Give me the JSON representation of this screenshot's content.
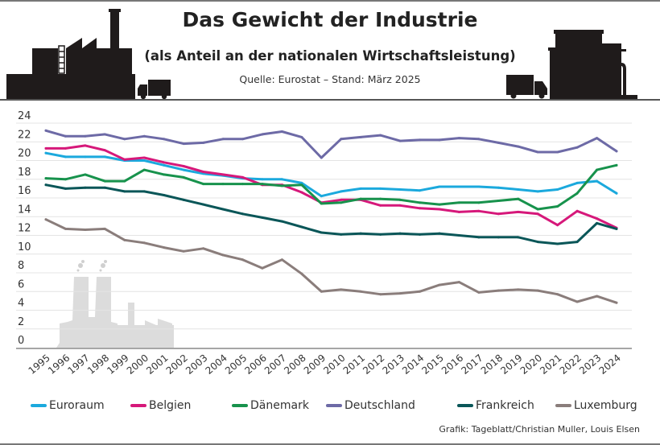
{
  "header": {
    "title": "Das Gewicht der Industrie",
    "subtitle": "(als Anteil an der nationalen Wirtschaftsleistung)",
    "source": "Quelle: Eurostat – Stand: März 2025"
  },
  "footer": {
    "credit": "Grafik: Tageblatt/Christian Muller, Louis Elsen"
  },
  "icons": [
    "factory-silhouette-icon",
    "truck-icon",
    "industrial-plant-icon",
    "power-plant-background-icon"
  ],
  "chart_data": {
    "type": "line",
    "title": "Das Gewicht der Industrie",
    "subtitle": "(als Anteil an der nationalen Wirtschaftsleistung)",
    "xlabel": "",
    "ylabel": "",
    "ylim": [
      0,
      24
    ],
    "yticks": [
      0,
      2,
      4,
      6,
      8,
      10,
      12,
      14,
      16,
      18,
      20,
      22,
      24
    ],
    "grid": true,
    "legend_position": "bottom",
    "x": [
      "1995",
      "1996",
      "1997",
      "1998",
      "1999",
      "2000",
      "2001",
      "2002",
      "2003",
      "2004",
      "2005",
      "2006",
      "2007",
      "2008",
      "2009",
      "2010",
      "2011",
      "2012",
      "2013",
      "2014",
      "2015",
      "2016",
      "2017",
      "2018",
      "2019",
      "2020",
      "2021",
      "2022",
      "2023",
      "2024"
    ],
    "series": [
      {
        "name": "Euroraum",
        "color": "#1ba9dd",
        "values": [
          20.8,
          20.4,
          20.4,
          20.4,
          20.0,
          20.0,
          19.5,
          19.0,
          18.6,
          18.4,
          18.1,
          18.0,
          18.0,
          17.6,
          16.2,
          16.7,
          17.0,
          17.0,
          16.9,
          16.8,
          17.2,
          17.2,
          17.2,
          17.1,
          16.9,
          16.7,
          16.9,
          17.6,
          17.8,
          16.5
        ]
      },
      {
        "name": "Belgien",
        "color": "#d6187a",
        "values": [
          21.3,
          21.3,
          21.6,
          21.1,
          20.1,
          20.3,
          19.8,
          19.4,
          18.8,
          18.5,
          18.2,
          17.4,
          17.4,
          16.6,
          15.5,
          15.8,
          15.8,
          15.2,
          15.2,
          14.9,
          14.8,
          14.5,
          14.6,
          14.3,
          14.5,
          14.3,
          13.1,
          14.6,
          13.8,
          12.8
        ]
      },
      {
        "name": "Dänemark",
        "color": "#17924c",
        "values": [
          18.1,
          18.0,
          18.5,
          17.8,
          17.8,
          19.0,
          18.5,
          18.2,
          17.5,
          17.5,
          17.5,
          17.5,
          17.3,
          17.4,
          15.4,
          15.5,
          15.9,
          15.9,
          15.8,
          15.5,
          15.3,
          15.5,
          15.5,
          15.7,
          15.9,
          14.8,
          15.1,
          16.5,
          19.0,
          19.5
        ]
      },
      {
        "name": "Deutschland",
        "color": "#6d6aa6",
        "values": [
          23.2,
          22.6,
          22.6,
          22.8,
          22.3,
          22.6,
          22.3,
          21.8,
          21.9,
          22.3,
          22.3,
          22.8,
          23.1,
          22.5,
          20.3,
          22.3,
          22.5,
          22.7,
          22.1,
          22.2,
          22.2,
          22.4,
          22.3,
          21.9,
          21.5,
          20.9,
          20.9,
          21.4,
          22.4,
          21.0
        ]
      },
      {
        "name": "Frankreich",
        "color": "#0a5658",
        "values": [
          17.4,
          17.0,
          17.1,
          17.1,
          16.7,
          16.7,
          16.3,
          15.8,
          15.3,
          14.8,
          14.3,
          13.9,
          13.5,
          12.9,
          12.3,
          12.1,
          12.2,
          12.1,
          12.2,
          12.1,
          12.2,
          12.0,
          11.8,
          11.8,
          11.8,
          11.3,
          11.1,
          11.3,
          13.3,
          12.7
        ]
      },
      {
        "name": "Luxemburg",
        "color": "#8a7d7b",
        "values": [
          13.7,
          12.7,
          12.6,
          12.7,
          11.5,
          11.2,
          10.7,
          10.3,
          10.6,
          9.9,
          9.4,
          8.5,
          9.4,
          7.9,
          6.0,
          6.2,
          6.0,
          5.7,
          5.8,
          6.0,
          6.7,
          7.0,
          5.9,
          6.1,
          6.2,
          6.1,
          5.7,
          4.9,
          5.5,
          4.8
        ]
      }
    ]
  }
}
